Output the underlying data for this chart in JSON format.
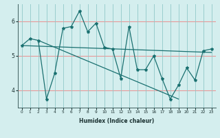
{
  "xlabel": "Humidex (Indice chaleur)",
  "x": [
    0,
    1,
    2,
    3,
    4,
    5,
    6,
    7,
    8,
    9,
    10,
    11,
    12,
    13,
    14,
    15,
    16,
    17,
    18,
    19,
    20,
    21,
    22,
    23
  ],
  "line_zigzag": [
    5.3,
    5.5,
    5.45,
    3.75,
    4.5,
    5.8,
    5.85,
    6.3,
    5.7,
    5.95,
    5.25,
    5.2,
    4.35,
    5.85,
    4.6,
    4.6,
    5.0,
    4.35,
    3.75,
    4.15,
    4.65,
    4.3,
    5.15,
    5.2
  ],
  "trend1_x": [
    0,
    23
  ],
  "trend1_y": [
    5.3,
    5.1
  ],
  "trend2_x": [
    2,
    19
  ],
  "trend2_y": [
    5.45,
    3.75
  ],
  "line_color": "#1a7070",
  "bg_color": "#d4eeee",
  "grid_color_h": "#e89898",
  "grid_color_v": "#90c8c8",
  "xlim": [
    -0.5,
    23.5
  ],
  "ylim": [
    3.5,
    6.5
  ],
  "yticks": [
    4,
    5,
    6
  ],
  "xticks": [
    0,
    1,
    2,
    3,
    4,
    5,
    6,
    7,
    8,
    9,
    10,
    11,
    12,
    13,
    14,
    15,
    16,
    17,
    18,
    19,
    20,
    21,
    22,
    23
  ]
}
